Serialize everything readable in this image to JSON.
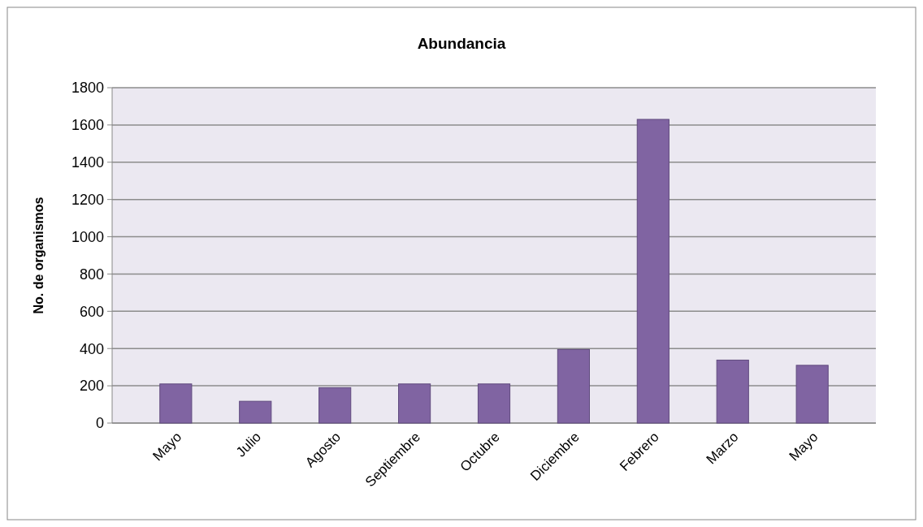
{
  "chart_data": {
    "type": "bar",
    "title": "Abundancia",
    "ylabel": "No. de organismos",
    "categories": [
      "Mayo",
      "Julio",
      "Agosto",
      "Septiembre",
      "Octubre",
      "Diciembre",
      "Febrero",
      "Marzo",
      "Mayo"
    ],
    "values": [
      210,
      117,
      190,
      210,
      210,
      395,
      1630,
      338,
      310
    ],
    "color": "#8064a2",
    "ylim": [
      0,
      1800
    ],
    "yticks": [
      0,
      200,
      400,
      600,
      800,
      1000,
      1200,
      1400,
      1600,
      1800
    ],
    "grid": "y"
  }
}
